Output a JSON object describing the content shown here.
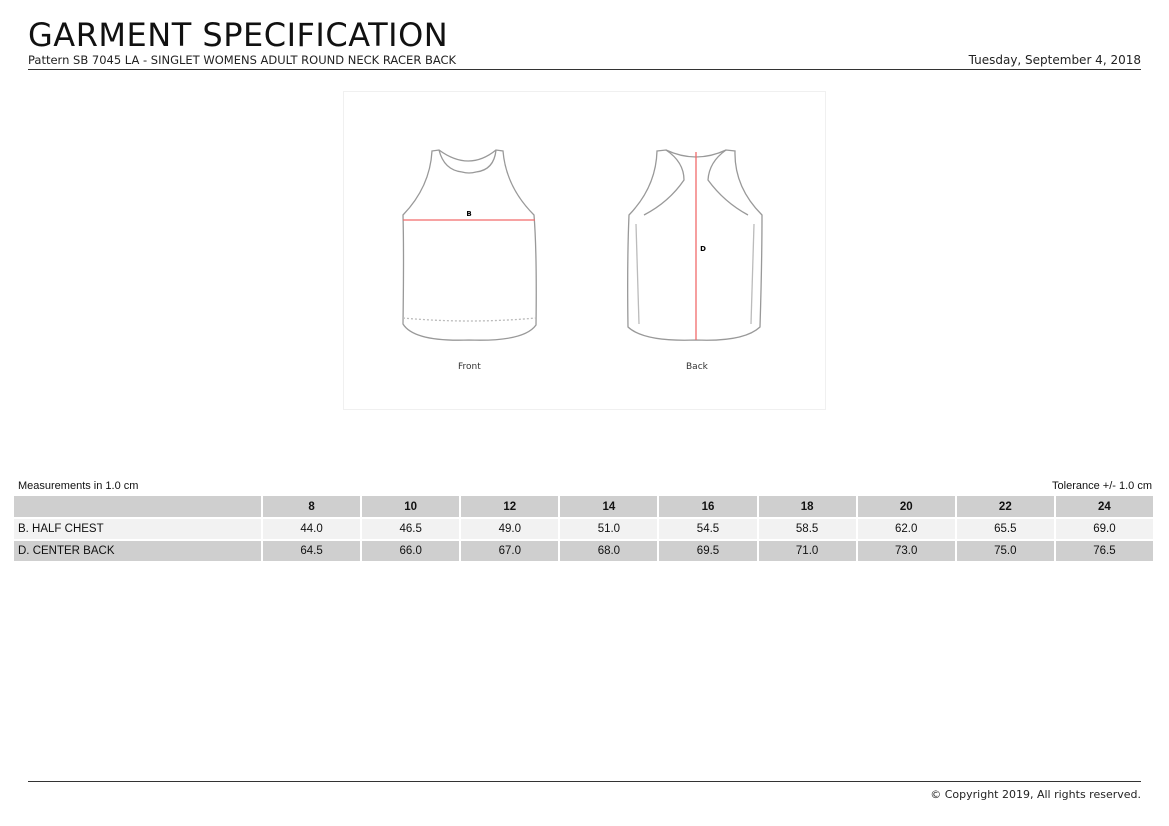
{
  "header": {
    "title": "GARMENT SPECIFICATION",
    "subtitle": "Pattern SB 7045 LA - SINGLET WOMENS ADULT ROUND NECK RACER BACK",
    "date": "Tuesday, September 4, 2018"
  },
  "figure": {
    "front_label": "Front",
    "back_label": "Back",
    "front_marker": "B",
    "back_marker": "D",
    "measure_color": "#f26b6b"
  },
  "table": {
    "units": "Measurements in 1.0 cm",
    "tolerance": "Tolerance +/- 1.0 cm",
    "sizes": [
      "8",
      "10",
      "12",
      "14",
      "16",
      "18",
      "20",
      "22",
      "24"
    ],
    "rows": [
      {
        "label": "B. HALF CHEST",
        "values": [
          "44.0",
          "46.5",
          "49.0",
          "51.0",
          "54.5",
          "58.5",
          "62.0",
          "65.5",
          "69.0"
        ]
      },
      {
        "label": "D. CENTER BACK",
        "values": [
          "64.5",
          "66.0",
          "67.0",
          "68.0",
          "69.5",
          "71.0",
          "73.0",
          "75.0",
          "76.5"
        ]
      }
    ]
  },
  "footer": {
    "copyright": "© Copyright 2019, All rights reserved."
  }
}
